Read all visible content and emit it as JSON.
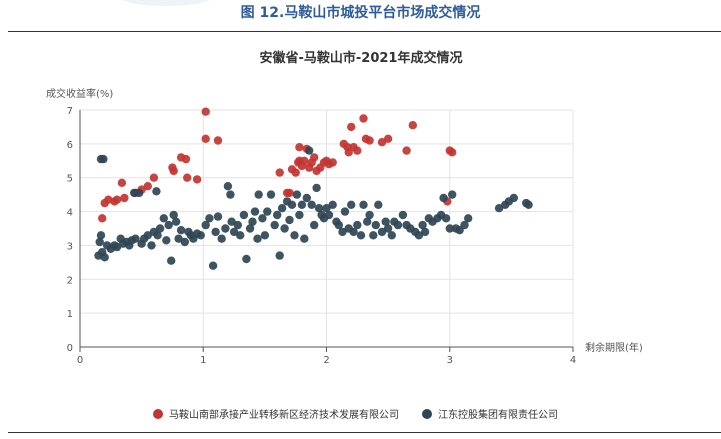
{
  "figure_title": "图 12.马鞍山市城投平台市场成交情况",
  "chart_data": {
    "type": "scatter",
    "title": "安徽省-马鞍山市-2021年成交情况",
    "xlabel": "剩余期限(年)",
    "ylabel": "成交收益率(%)",
    "xlim": [
      0,
      4
    ],
    "ylim": [
      0,
      7
    ],
    "x_ticks": [
      "0",
      "1",
      "2",
      "3",
      "4"
    ],
    "y_ticks": [
      "0",
      "1",
      "2",
      "3",
      "4",
      "5",
      "6",
      "7"
    ],
    "grid": true,
    "legend_position": "bottom",
    "series": [
      {
        "name": "马鞍山南部承接产业转移新区经济技术发展有限公司",
        "color": "#C23531",
        "points": [
          [
            0.18,
            3.8
          ],
          [
            0.2,
            4.25
          ],
          [
            0.23,
            4.35
          ],
          [
            0.28,
            4.3
          ],
          [
            0.3,
            4.35
          ],
          [
            0.34,
            4.85
          ],
          [
            0.36,
            4.4
          ],
          [
            0.45,
            4.55
          ],
          [
            0.5,
            4.65
          ],
          [
            0.55,
            4.75
          ],
          [
            0.6,
            5.0
          ],
          [
            0.75,
            5.3
          ],
          [
            0.76,
            5.2
          ],
          [
            0.82,
            5.6
          ],
          [
            0.86,
            5.55
          ],
          [
            0.87,
            5.0
          ],
          [
            0.95,
            4.95
          ],
          [
            1.02,
            6.95
          ],
          [
            1.02,
            6.15
          ],
          [
            1.12,
            6.1
          ],
          [
            1.62,
            5.15
          ],
          [
            1.68,
            4.55
          ],
          [
            1.7,
            4.55
          ],
          [
            1.72,
            5.25
          ],
          [
            1.75,
            5.15
          ],
          [
            1.77,
            5.45
          ],
          [
            1.78,
            5.5
          ],
          [
            1.78,
            5.9
          ],
          [
            1.8,
            5.35
          ],
          [
            1.82,
            5.5
          ],
          [
            1.84,
            5.85
          ],
          [
            1.86,
            5.3
          ],
          [
            1.88,
            5.45
          ],
          [
            1.9,
            5.6
          ],
          [
            1.92,
            5.2
          ],
          [
            1.95,
            5.3
          ],
          [
            1.98,
            5.45
          ],
          [
            2.0,
            5.5
          ],
          [
            2.02,
            5.4
          ],
          [
            2.05,
            5.45
          ],
          [
            2.14,
            6.0
          ],
          [
            2.17,
            5.9
          ],
          [
            2.18,
            5.75
          ],
          [
            2.2,
            6.5
          ],
          [
            2.22,
            5.9
          ],
          [
            2.25,
            5.8
          ],
          [
            2.3,
            6.75
          ],
          [
            2.32,
            6.15
          ],
          [
            2.35,
            6.1
          ],
          [
            2.45,
            6.05
          ],
          [
            2.5,
            6.15
          ],
          [
            2.65,
            5.8
          ],
          [
            2.7,
            6.55
          ],
          [
            2.98,
            4.3
          ],
          [
            3.0,
            5.8
          ],
          [
            3.02,
            5.75
          ]
        ]
      },
      {
        "name": "江东控股集团有限责任公司",
        "color": "#2F4554",
        "points": [
          [
            0.15,
            2.7
          ],
          [
            0.16,
            3.1
          ],
          [
            0.17,
            3.3
          ],
          [
            0.17,
            5.55
          ],
          [
            0.18,
            2.8
          ],
          [
            0.19,
            5.55
          ],
          [
            0.2,
            2.65
          ],
          [
            0.22,
            3.0
          ],
          [
            0.25,
            2.9
          ],
          [
            0.28,
            3.0
          ],
          [
            0.3,
            2.95
          ],
          [
            0.33,
            3.2
          ],
          [
            0.35,
            3.05
          ],
          [
            0.38,
            3.1
          ],
          [
            0.4,
            3.0
          ],
          [
            0.42,
            3.15
          ],
          [
            0.44,
            4.55
          ],
          [
            0.45,
            3.2
          ],
          [
            0.48,
            4.55
          ],
          [
            0.5,
            3.05
          ],
          [
            0.52,
            3.2
          ],
          [
            0.55,
            3.3
          ],
          [
            0.58,
            3.0
          ],
          [
            0.6,
            3.4
          ],
          [
            0.62,
            4.6
          ],
          [
            0.63,
            3.3
          ],
          [
            0.65,
            3.5
          ],
          [
            0.68,
            3.8
          ],
          [
            0.7,
            3.15
          ],
          [
            0.72,
            3.6
          ],
          [
            0.74,
            2.55
          ],
          [
            0.76,
            3.9
          ],
          [
            0.78,
            3.7
          ],
          [
            0.8,
            3.2
          ],
          [
            0.82,
            3.45
          ],
          [
            0.85,
            3.1
          ],
          [
            0.88,
            3.4
          ],
          [
            0.9,
            3.3
          ],
          [
            0.92,
            3.2
          ],
          [
            0.95,
            3.35
          ],
          [
            0.98,
            3.3
          ],
          [
            1.02,
            3.6
          ],
          [
            1.05,
            3.8
          ],
          [
            1.08,
            2.4
          ],
          [
            1.1,
            3.4
          ],
          [
            1.12,
            3.85
          ],
          [
            1.15,
            3.2
          ],
          [
            1.18,
            3.5
          ],
          [
            1.2,
            4.75
          ],
          [
            1.22,
            4.5
          ],
          [
            1.23,
            3.7
          ],
          [
            1.25,
            3.4
          ],
          [
            1.28,
            3.6
          ],
          [
            1.3,
            3.3
          ],
          [
            1.33,
            3.9
          ],
          [
            1.35,
            2.6
          ],
          [
            1.38,
            3.5
          ],
          [
            1.4,
            3.7
          ],
          [
            1.42,
            4.0
          ],
          [
            1.44,
            3.2
          ],
          [
            1.45,
            4.5
          ],
          [
            1.48,
            3.8
          ],
          [
            1.5,
            3.3
          ],
          [
            1.52,
            4.0
          ],
          [
            1.55,
            4.5
          ],
          [
            1.58,
            3.6
          ],
          [
            1.6,
            3.9
          ],
          [
            1.62,
            2.7
          ],
          [
            1.64,
            4.1
          ],
          [
            1.66,
            3.5
          ],
          [
            1.68,
            4.3
          ],
          [
            1.7,
            3.75
          ],
          [
            1.72,
            4.2
          ],
          [
            1.74,
            3.3
          ],
          [
            1.76,
            4.5
          ],
          [
            1.78,
            3.9
          ],
          [
            1.8,
            4.2
          ],
          [
            1.82,
            3.2
          ],
          [
            1.84,
            4.4
          ],
          [
            1.86,
            5.8
          ],
          [
            1.88,
            4.2
          ],
          [
            1.9,
            3.6
          ],
          [
            1.92,
            4.7
          ],
          [
            1.94,
            4.1
          ],
          [
            1.96,
            3.9
          ],
          [
            1.98,
            3.8
          ],
          [
            2.0,
            4.1
          ],
          [
            2.02,
            3.9
          ],
          [
            2.05,
            4.2
          ],
          [
            2.08,
            3.7
          ],
          [
            2.1,
            3.6
          ],
          [
            2.13,
            3.4
          ],
          [
            2.15,
            4.0
          ],
          [
            2.18,
            3.5
          ],
          [
            2.2,
            4.2
          ],
          [
            2.22,
            3.4
          ],
          [
            2.25,
            3.6
          ],
          [
            2.28,
            3.3
          ],
          [
            2.3,
            4.2
          ],
          [
            2.33,
            3.7
          ],
          [
            2.35,
            3.9
          ],
          [
            2.38,
            3.3
          ],
          [
            2.4,
            3.6
          ],
          [
            2.42,
            4.2
          ],
          [
            2.45,
            3.4
          ],
          [
            2.48,
            3.7
          ],
          [
            2.5,
            3.5
          ],
          [
            2.53,
            3.3
          ],
          [
            2.55,
            3.7
          ],
          [
            2.58,
            3.6
          ],
          [
            2.62,
            3.9
          ],
          [
            2.65,
            3.6
          ],
          [
            2.68,
            3.5
          ],
          [
            2.72,
            3.4
          ],
          [
            2.75,
            3.3
          ],
          [
            2.78,
            3.6
          ],
          [
            2.8,
            3.4
          ],
          [
            2.83,
            3.8
          ],
          [
            2.86,
            3.7
          ],
          [
            2.9,
            3.8
          ],
          [
            2.93,
            3.9
          ],
          [
            2.95,
            4.4
          ],
          [
            2.97,
            3.8
          ],
          [
            3.0,
            3.5
          ],
          [
            3.02,
            4.5
          ],
          [
            3.05,
            3.5
          ],
          [
            3.08,
            3.45
          ],
          [
            3.12,
            3.6
          ],
          [
            3.15,
            3.8
          ],
          [
            3.4,
            4.1
          ],
          [
            3.45,
            4.2
          ],
          [
            3.48,
            4.3
          ],
          [
            3.52,
            4.4
          ],
          [
            3.62,
            4.25
          ],
          [
            3.64,
            4.2
          ]
        ]
      }
    ]
  }
}
